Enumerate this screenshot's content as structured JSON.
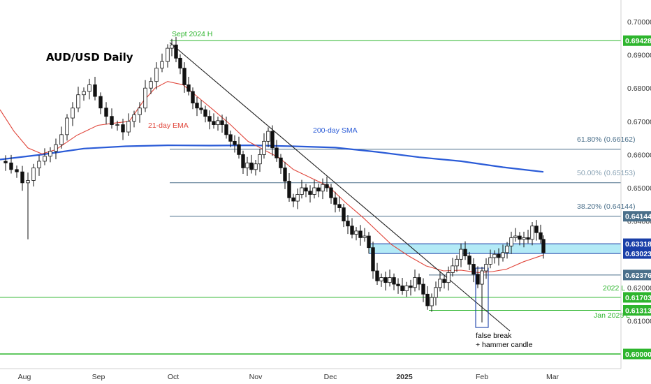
{
  "title": "AUD/USD Daily",
  "colors": {
    "up_body": "#ffffff",
    "down_body": "#111111",
    "wick": "#111111",
    "ema": "#e0453a",
    "sma": "#2a5bd7",
    "green": "#2db52d",
    "fib": "#4a6f8a",
    "zone": "#9fe3f2",
    "zone_edge": "#1a3fa8",
    "trend": "#222222"
  },
  "chart_data": {
    "type": "candlestick",
    "title": "AUD/USD Daily",
    "y_range": [
      0.596,
      0.7055
    ],
    "y_ticks": [
      "0.70000",
      "0.69000",
      "0.68000",
      "0.67000",
      "0.66000",
      "0.65000",
      "0.64000",
      "0.63000",
      "0.62000",
      "0.61000"
    ],
    "x_ticks": [
      "Aug",
      "Sep",
      "Oct",
      "Nov",
      "Dec",
      "2025",
      "Feb",
      "Mar"
    ],
    "levels": [
      {
        "value": 0.69428,
        "label": "0.69428",
        "text": "Sept 2024 H",
        "kind": "green"
      },
      {
        "value": 0.66162,
        "text": "61.80% (0.66162)",
        "kind": "fib"
      },
      {
        "value": 0.65153,
        "text": "50.00% (0.65153)",
        "kind": "fib"
      },
      {
        "value": 0.64144,
        "label": "0.64144",
        "text": "38.20% (0.64144)",
        "kind": "fib"
      },
      {
        "value": 0.63318,
        "label": "0.63318",
        "kind": "zone"
      },
      {
        "value": 0.63023,
        "label": "0.63023",
        "kind": "zone"
      },
      {
        "value": 0.62376,
        "label": "0.62376",
        "kind": "fib"
      },
      {
        "value": 0.61703,
        "label": "0.61703",
        "text": "2022 L",
        "kind": "green"
      },
      {
        "value": 0.61313,
        "label": "0.61313",
        "text": "Jan 2025 L",
        "kind": "green"
      },
      {
        "value": 0.6,
        "label": "0.60000",
        "kind": "green"
      }
    ],
    "indicators": [
      {
        "name": "21-day EMA",
        "color": "#e0453a"
      },
      {
        "name": "200-day SMA",
        "color": "#2a5bd7"
      }
    ],
    "annotations": [
      "false break",
      "+ hammer candle"
    ],
    "sma_path": [
      [
        0,
        0.6585
      ],
      [
        60,
        0.66
      ],
      [
        120,
        0.6618
      ],
      [
        180,
        0.6625
      ],
      [
        240,
        0.6628
      ],
      [
        300,
        0.6627
      ],
      [
        360,
        0.6628
      ],
      [
        420,
        0.6625
      ],
      [
        480,
        0.6621
      ],
      [
        540,
        0.6608
      ],
      [
        600,
        0.6592
      ],
      [
        660,
        0.658
      ],
      [
        720,
        0.6562
      ],
      [
        778,
        0.6548
      ]
    ],
    "ema_path": [
      [
        0,
        0.6735
      ],
      [
        20,
        0.667
      ],
      [
        40,
        0.662
      ],
      [
        60,
        0.6602
      ],
      [
        80,
        0.6615
      ],
      [
        110,
        0.6658
      ],
      [
        140,
        0.6688
      ],
      [
        165,
        0.6695
      ],
      [
        185,
        0.67
      ],
      [
        205,
        0.676
      ],
      [
        222,
        0.68
      ],
      [
        240,
        0.682
      ],
      [
        262,
        0.681
      ],
      [
        285,
        0.677
      ],
      [
        305,
        0.6735
      ],
      [
        330,
        0.669
      ],
      [
        355,
        0.664
      ],
      [
        380,
        0.6612
      ],
      [
        400,
        0.659
      ],
      [
        420,
        0.6555
      ],
      [
        445,
        0.653
      ],
      [
        470,
        0.6505
      ],
      [
        495,
        0.6455
      ],
      [
        520,
        0.641
      ],
      [
        540,
        0.637
      ],
      [
        560,
        0.633
      ],
      [
        585,
        0.6295
      ],
      [
        610,
        0.6265
      ],
      [
        635,
        0.625
      ],
      [
        660,
        0.6252
      ],
      [
        685,
        0.6245
      ],
      [
        705,
        0.6248
      ],
      [
        725,
        0.6255
      ],
      [
        750,
        0.6278
      ],
      [
        778,
        0.6298
      ]
    ],
    "close_path": [
      [
        0,
        0.658
      ],
      [
        8,
        0.6575
      ],
      [
        16,
        0.6555
      ],
      [
        24,
        0.6548
      ],
      [
        32,
        0.6515
      ],
      [
        40,
        0.6522
      ],
      [
        48,
        0.656
      ],
      [
        56,
        0.658
      ],
      [
        64,
        0.6595
      ],
      [
        72,
        0.661
      ],
      [
        80,
        0.663
      ],
      [
        88,
        0.666
      ],
      [
        96,
        0.671
      ],
      [
        104,
        0.674
      ],
      [
        112,
        0.678
      ],
      [
        120,
        0.679
      ],
      [
        128,
        0.681
      ],
      [
        136,
        0.6775
      ],
      [
        144,
        0.674
      ],
      [
        152,
        0.6715
      ],
      [
        160,
        0.669
      ],
      [
        168,
        0.669
      ],
      [
        176,
        0.6668
      ],
      [
        184,
        0.67
      ],
      [
        192,
        0.672
      ],
      [
        200,
        0.674
      ],
      [
        208,
        0.68
      ],
      [
        216,
        0.682
      ],
      [
        224,
        0.686
      ],
      [
        232,
        0.688
      ],
      [
        240,
        0.692
      ],
      [
        246,
        0.693
      ],
      [
        252,
        0.689
      ],
      [
        258,
        0.686
      ],
      [
        264,
        0.681
      ],
      [
        270,
        0.679
      ],
      [
        276,
        0.6755
      ],
      [
        282,
        0.674
      ],
      [
        288,
        0.6735
      ],
      [
        294,
        0.6715
      ],
      [
        300,
        0.67
      ],
      [
        306,
        0.669
      ],
      [
        312,
        0.6702
      ],
      [
        318,
        0.669
      ],
      [
        324,
        0.666
      ],
      [
        330,
        0.664
      ],
      [
        336,
        0.663
      ],
      [
        342,
        0.66
      ],
      [
        348,
        0.656
      ],
      [
        354,
        0.6575
      ],
      [
        360,
        0.6555
      ],
      [
        366,
        0.6572
      ],
      [
        372,
        0.66
      ],
      [
        378,
        0.664
      ],
      [
        384,
        0.667
      ],
      [
        390,
        0.662
      ],
      [
        396,
        0.659
      ],
      [
        402,
        0.656
      ],
      [
        408,
        0.652
      ],
      [
        414,
        0.647
      ],
      [
        420,
        0.646
      ],
      [
        426,
        0.648
      ],
      [
        432,
        0.65
      ],
      [
        438,
        0.649
      ],
      [
        444,
        0.648
      ],
      [
        450,
        0.65
      ],
      [
        456,
        0.649
      ],
      [
        462,
        0.651
      ],
      [
        468,
        0.65
      ],
      [
        474,
        0.647
      ],
      [
        480,
        0.645
      ],
      [
        486,
        0.644
      ],
      [
        492,
        0.64
      ],
      [
        498,
        0.6385
      ],
      [
        504,
        0.636
      ],
      [
        510,
        0.637
      ],
      [
        516,
        0.635
      ],
      [
        522,
        0.6355
      ],
      [
        528,
        0.632
      ],
      [
        534,
        0.625
      ],
      [
        540,
        0.622
      ],
      [
        546,
        0.623
      ],
      [
        552,
        0.6215
      ],
      [
        558,
        0.623
      ],
      [
        564,
        0.621
      ],
      [
        570,
        0.6205
      ],
      [
        576,
        0.619
      ],
      [
        582,
        0.6205
      ],
      [
        588,
        0.62
      ],
      [
        594,
        0.623
      ],
      [
        600,
        0.621
      ],
      [
        606,
        0.618
      ],
      [
        612,
        0.6145
      ],
      [
        618,
        0.617
      ],
      [
        624,
        0.62
      ],
      [
        630,
        0.6225
      ],
      [
        636,
        0.6215
      ],
      [
        642,
        0.6245
      ],
      [
        648,
        0.6265
      ],
      [
        654,
        0.6285
      ],
      [
        660,
        0.6315
      ],
      [
        666,
        0.6295
      ],
      [
        672,
        0.627
      ],
      [
        678,
        0.624
      ],
      [
        684,
        0.621
      ],
      [
        690,
        0.625
      ],
      [
        696,
        0.627
      ],
      [
        702,
        0.629
      ],
      [
        708,
        0.63
      ],
      [
        714,
        0.629
      ],
      [
        720,
        0.6305
      ],
      [
        726,
        0.6325
      ],
      [
        732,
        0.635
      ],
      [
        738,
        0.6355
      ],
      [
        744,
        0.6345
      ],
      [
        750,
        0.635
      ],
      [
        756,
        0.6345
      ],
      [
        762,
        0.6385
      ],
      [
        768,
        0.6365
      ],
      [
        774,
        0.6345
      ],
      [
        778,
        0.6305
      ]
    ]
  },
  "labels": {
    "sept_high": "Sept 2024 H",
    "ema": "21-day EMA",
    "sma": "200-day SMA",
    "fib_618": "61.80% (0.66162)",
    "fib_500": "50.00% (0.65153)",
    "fib_382": "38.20% (0.64144)",
    "low_2022": "2022 L",
    "low_jan": "Jan 2025 L",
    "false_break_1": "false break",
    "false_break_2": "+ hammer candle"
  }
}
